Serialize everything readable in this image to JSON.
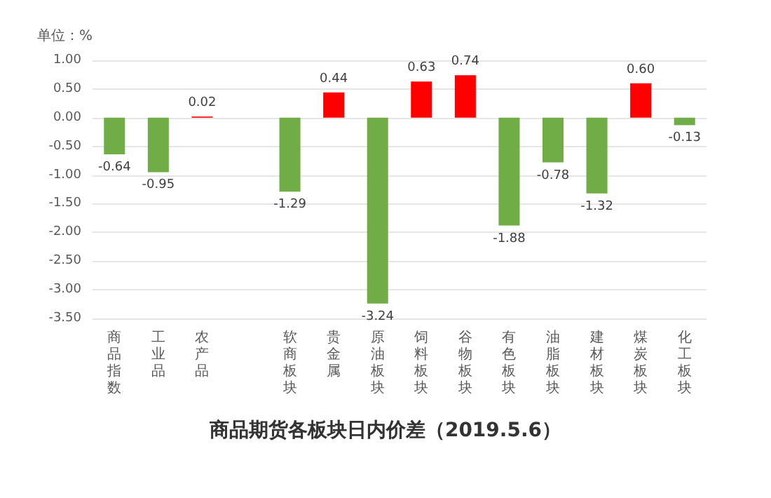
{
  "chart_data": {
    "type": "bar",
    "title": "商品期货各板块日内价差（2019.5.6）",
    "ylabel": "单位：%",
    "categories": [
      "商品指数",
      "工业品",
      "农产品",
      null,
      "软商板块",
      "贵金属",
      "原油板块",
      "饲料板块",
      "谷物板块",
      "有色板块",
      "油脂板块",
      "建材板块",
      "煤炭板块",
      "化工板块"
    ],
    "values": [
      -0.64,
      -0.95,
      0.02,
      null,
      -1.29,
      0.44,
      -3.24,
      0.63,
      0.74,
      -1.88,
      -0.78,
      -1.32,
      0.6,
      -0.13
    ],
    "value_labels": [
      "-0.64",
      "-0.95",
      "0.02",
      null,
      "-1.29",
      "0.44",
      "-3.24",
      "0.63",
      "0.74",
      "-1.88",
      "-0.78",
      "-1.32",
      "0.60",
      "-0.13"
    ],
    "colors": [
      "#70ad47",
      "#70ad47",
      "#ff0000",
      null,
      "#70ad47",
      "#ff0000",
      "#70ad47",
      "#ff0000",
      "#ff0000",
      "#70ad47",
      "#70ad47",
      "#70ad47",
      "#ff0000",
      "#70ad47"
    ],
    "ylim": [
      -3.5,
      1
    ],
    "yticks": [
      {
        "value": -3.5,
        "label": "-3.50"
      },
      {
        "value": -3,
        "label": "-3.00"
      },
      {
        "value": -2.5,
        "label": "-2.50"
      },
      {
        "value": -2,
        "label": "-2.00"
      },
      {
        "value": -1.5,
        "label": "-1.50"
      },
      {
        "value": -1,
        "label": "-1.00"
      },
      {
        "value": -0.5,
        "label": "-0.50"
      },
      {
        "value": 0,
        "label": "0.00"
      },
      {
        "value": 0.5,
        "label": "0.50"
      },
      {
        "value": 1,
        "label": "1.00"
      }
    ],
    "grid": "y"
  }
}
